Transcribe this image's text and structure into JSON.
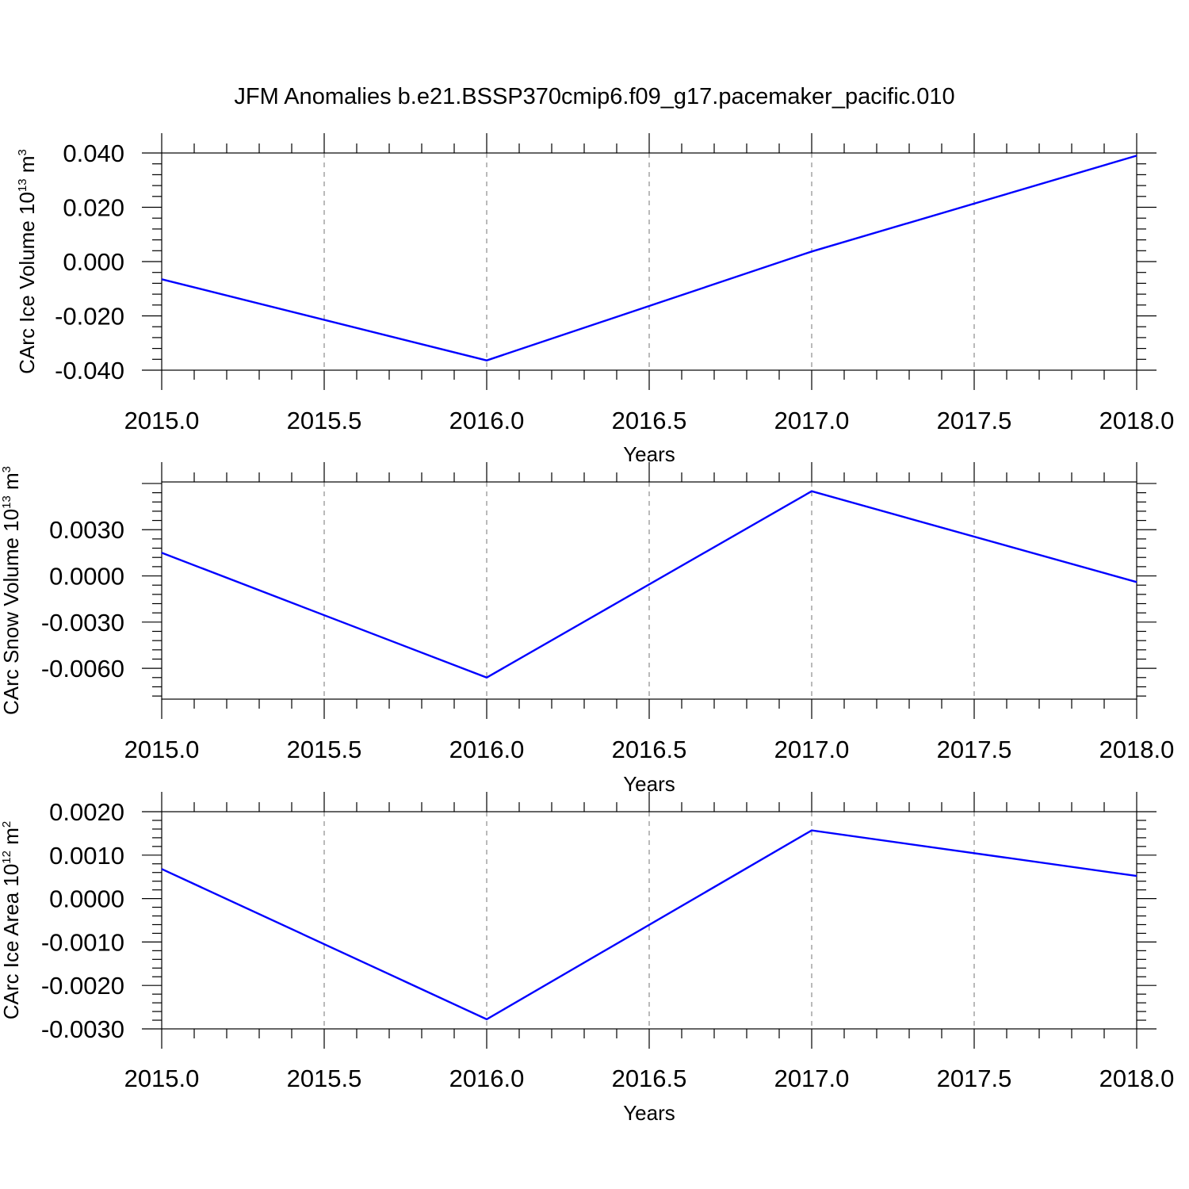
{
  "title": "JFM Anomalies b.e21.BSSP370cmip6.f09_g17.pacemaker_pacific.010",
  "line_color": "#0000ff",
  "chart_data": [
    {
      "type": "line",
      "xlabel": "Years",
      "ylabel": {
        "text": "CArc Ice Volume 10",
        "sup1": "13",
        "unit": " m",
        "sup2": "3"
      },
      "x": [
        2015.0,
        2016.0,
        2017.0,
        2018.0
      ],
      "values": [
        -0.0065,
        -0.0364,
        0.0037,
        0.039
      ],
      "xlim": [
        2015.0,
        2018.0
      ],
      "ylim": [
        -0.04,
        0.04
      ],
      "xticks": [
        "2015.0",
        "2015.5",
        "2016.0",
        "2016.5",
        "2017.0",
        "2017.5",
        "2018.0"
      ],
      "yticks": [
        "-0.040",
        "-0.020",
        "0.000",
        "0.020",
        "0.040"
      ],
      "ytick_values": [
        -0.04,
        -0.02,
        0.0,
        0.02,
        0.04
      ],
      "grid": "vertical-dashed"
    },
    {
      "type": "line",
      "xlabel": "Years",
      "ylabel": {
        "text": "CArc Snow Volume 10",
        "sup1": "13",
        "unit": " m",
        "sup2": "3"
      },
      "x": [
        2015.0,
        2016.0,
        2017.0,
        2018.0
      ],
      "values": [
        0.0015,
        -0.0066,
        0.0055,
        -0.0004
      ],
      "xlim": [
        2015.0,
        2018.0
      ],
      "ylim": [
        -0.008,
        0.0061
      ],
      "xticks": [
        "2015.0",
        "2015.5",
        "2016.0",
        "2016.5",
        "2017.0",
        "2017.5",
        "2018.0"
      ],
      "yticks": [
        "-0.0060",
        "-0.0030",
        "0.0000",
        "0.0030"
      ],
      "ytick_values": [
        -0.006,
        -0.003,
        0.0,
        0.003
      ],
      "grid": "vertical-dashed"
    },
    {
      "type": "line",
      "xlabel": "Years",
      "ylabel": {
        "text": "CArc Ice Area 10",
        "sup1": "12",
        "unit": " m",
        "sup2": "2"
      },
      "x": [
        2015.0,
        2016.0,
        2017.0,
        2018.0
      ],
      "values": [
        0.00068,
        -0.00278,
        0.00157,
        0.00052
      ],
      "xlim": [
        2015.0,
        2018.0
      ],
      "ylim": [
        -0.003,
        0.002
      ],
      "xticks": [
        "2015.0",
        "2015.5",
        "2016.0",
        "2016.5",
        "2017.0",
        "2017.5",
        "2018.0"
      ],
      "yticks": [
        "-0.0030",
        "-0.0020",
        "-0.0010",
        "0.0000",
        "0.0010",
        "0.0020"
      ],
      "ytick_values": [
        -0.003,
        -0.002,
        -0.001,
        0.0,
        0.001,
        0.002
      ],
      "grid": "vertical-dashed"
    }
  ]
}
